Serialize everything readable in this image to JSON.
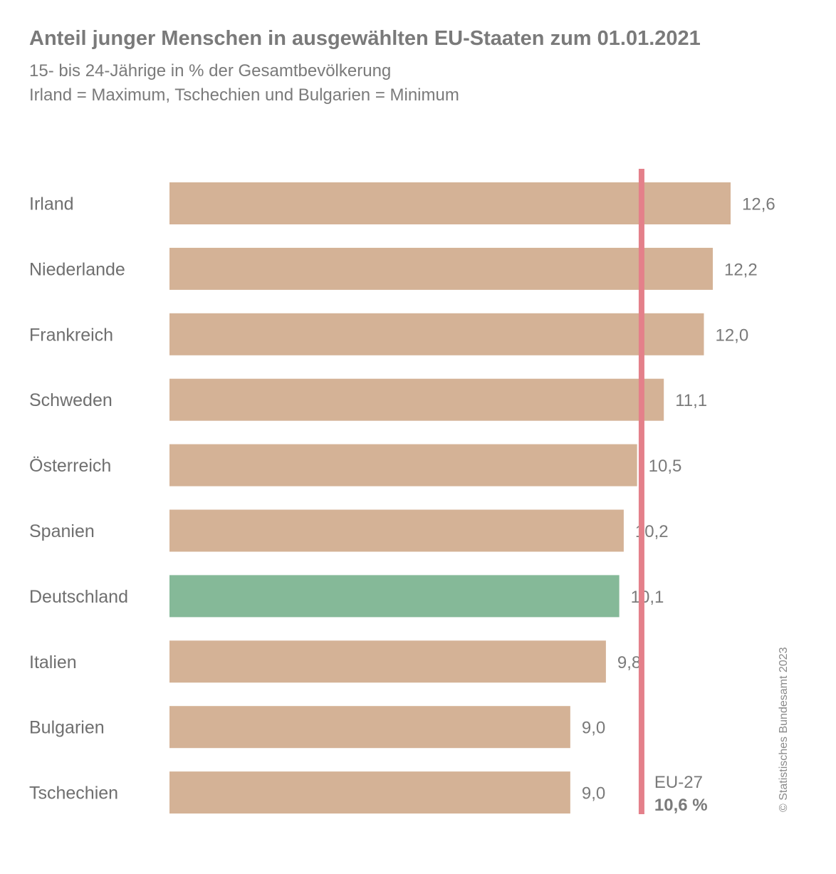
{
  "header": {
    "title": "Anteil junger Menschen in ausgewählten EU-Staaten zum 01.01.2021",
    "subtitle_line1": "15- bis 24-Jährige in % der Gesamtbevölkerung",
    "subtitle_line2": "Irland = Maximum, Tschechien und Bulgarien = Minimum"
  },
  "chart_data": {
    "type": "bar",
    "orientation": "horizontal",
    "categories": [
      "Irland",
      "Niederlande",
      "Frankreich",
      "Schweden",
      "Österreich",
      "Spanien",
      "Deutschland",
      "Italien",
      "Bulgarien",
      "Tschechien"
    ],
    "values": [
      12.6,
      12.2,
      12.0,
      11.1,
      10.5,
      10.2,
      10.1,
      9.8,
      9.0,
      9.0
    ],
    "value_labels": [
      "12,6",
      "12,2",
      "12,0",
      "11,1",
      "10,5",
      "10,2",
      "10,1",
      "9,8",
      "9,0",
      "9,0"
    ],
    "highlight_category": "Deutschland",
    "xlim": [
      0,
      12.6
    ],
    "grid": false,
    "reference_line": {
      "value": 10.6,
      "label": "EU-27",
      "value_label": "10,6 %"
    },
    "colors": {
      "bar": "#d4b296",
      "highlight": "#85b998",
      "reference_line": "#e4808a"
    }
  },
  "footer": {
    "copyright": "© Statistisches Bundesamt 2023"
  }
}
